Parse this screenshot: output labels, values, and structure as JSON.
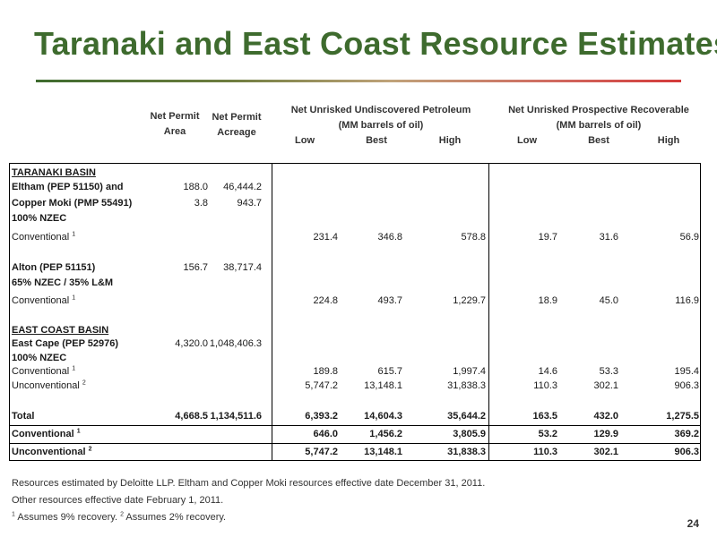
{
  "title": "Taranaki and East Coast Resource Estimates",
  "headers": {
    "net_permit_area": [
      "Net Permit",
      "Area"
    ],
    "net_permit_acreage": [
      "Net Permit",
      "Acreage"
    ],
    "undiscovered_group": [
      "Net Unrisked Undiscovered Petroleum",
      "(MM barrels of oil)"
    ],
    "prospective_group": [
      "Net Unrisked Prospective Recoverable",
      "(MM barrels of oil)"
    ],
    "low": "Low",
    "best": "Best",
    "high": "High"
  },
  "rows": [
    {
      "label": "TARANAKI BASIN"
    },
    {
      "label": "Eltham (PEP 51150) and",
      "area": "188.0",
      "acreage": "46,444.2"
    },
    {
      "label": "Copper Moki (PMP 55491)",
      "area": "3.8",
      "acreage": "943.7"
    },
    {
      "label": "100% NZEC"
    },
    {
      "label": "Conventional",
      "sup": "1",
      "u_low": "231.4",
      "u_best": "346.8",
      "u_high": "578.8",
      "p_low": "19.7",
      "p_best": "31.6",
      "p_high": "56.9"
    },
    {
      "label": "Alton (PEP 51151)",
      "area": "156.7",
      "acreage": "38,717.4"
    },
    {
      "label": "65% NZEC / 35% L&M"
    },
    {
      "label": "Conventional",
      "sup": "1",
      "u_low": "224.8",
      "u_best": "493.7",
      "u_high": "1,229.7",
      "p_low": "18.9",
      "p_best": "45.0",
      "p_high": "116.9"
    },
    {
      "label": "EAST COAST BASIN"
    },
    {
      "label": "East Cape (PEP 52976)",
      "area": "4,320.0",
      "acreage": "1,048,406.3"
    },
    {
      "label": "100% NZEC"
    },
    {
      "label": "Conventional",
      "sup": "1",
      "u_low": "189.8",
      "u_best": "615.7",
      "u_high": "1,997.4",
      "p_low": "14.6",
      "p_best": "53.3",
      "p_high": "195.4"
    },
    {
      "label": "Unconventional",
      "sup": "2",
      "u_low": "5,747.2",
      "u_best": "13,148.1",
      "u_high": "31,838.3",
      "p_low": "110.3",
      "p_best": "302.1",
      "p_high": "906.3"
    },
    {
      "label": "Total",
      "area": "4,668.5",
      "acreage": "1,134,511.6",
      "u_low": "6,393.2",
      "u_best": "14,604.3",
      "u_high": "35,644.2",
      "p_low": "163.5",
      "p_best": "432.0",
      "p_high": "1,275.5"
    },
    {
      "label": "Conventional",
      "sup": "1",
      "u_low": "646.0",
      "u_best": "1,456.2",
      "u_high": "3,805.9",
      "p_low": "53.2",
      "p_best": "129.9",
      "p_high": "369.2"
    },
    {
      "label": "Unconventional",
      "sup": "2",
      "u_low": "5,747.2",
      "u_best": "13,148.1",
      "u_high": "31,838.3",
      "p_low": "110.3",
      "p_best": "302.1",
      "p_high": "906.3"
    }
  ],
  "footnotes": {
    "line1": "Resources estimated by Deloitte LLP. Eltham and Copper Moki resources effective date December 31, 2011.",
    "line2": "Other resources effective date February 1, 2011.",
    "sup1": "1",
    "text1": " Assumes 9% recovery. ",
    "sup2": "2",
    "text2": " Assumes 2% recovery."
  },
  "page_number": "24",
  "colors": {
    "title": "#3e6b2e",
    "rule_start": "#3e6b2e",
    "rule_end": "#d43a3a"
  }
}
